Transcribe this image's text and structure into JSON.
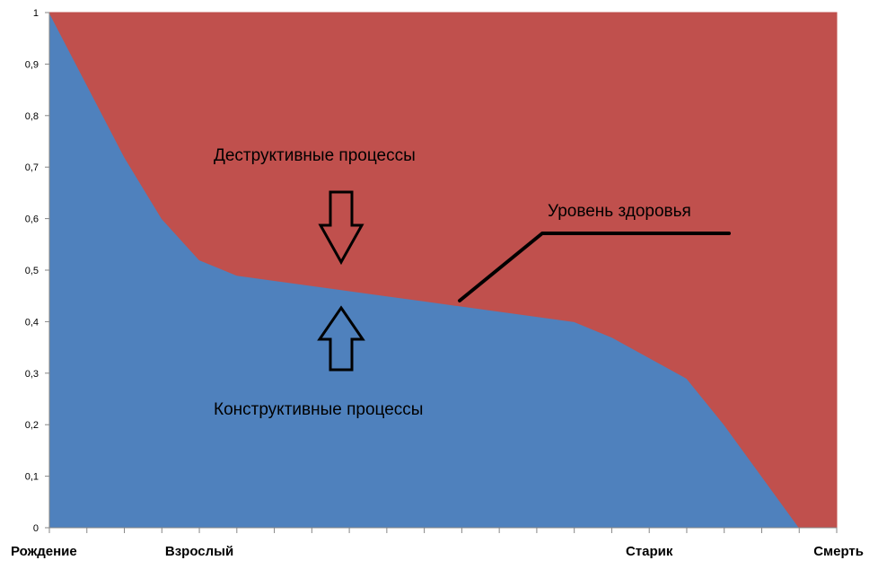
{
  "chart_data": {
    "type": "area",
    "stacked": true,
    "x": [
      0,
      1,
      2,
      3,
      4,
      5,
      6,
      7,
      8,
      9,
      10,
      11,
      12,
      13,
      14,
      15,
      16,
      17,
      18,
      19,
      20,
      21
    ],
    "series": [
      {
        "values": [
          1.0,
          0.86,
          0.72,
          0.6,
          0.52,
          0.49,
          0.48,
          0.47,
          0.46,
          0.45,
          0.44,
          0.43,
          0.42,
          0.41,
          0.4,
          0.37,
          0.33,
          0.29,
          0.2,
          0.1,
          0.0,
          0.0
        ],
        "color": "#4f81bd"
      },
      {
        "values": [
          0.0,
          0.14,
          0.28,
          0.4,
          0.48,
          0.51,
          0.52,
          0.53,
          0.54,
          0.55,
          0.56,
          0.57,
          0.58,
          0.59,
          0.6,
          0.63,
          0.67,
          0.71,
          0.8,
          0.9,
          1.0,
          1.0
        ],
        "color": "#c0504d"
      }
    ],
    "ylim": [
      0,
      1
    ],
    "yticks": [
      "0",
      "0,1",
      "0,2",
      "0,3",
      "0,4",
      "0,5",
      "0,6",
      "0,7",
      "0,8",
      "0,9",
      "1"
    ],
    "xtick_labels": [
      {
        "x": 0,
        "label": "Рождение"
      },
      {
        "x": 4,
        "label": "Взрослый"
      },
      {
        "x": 16,
        "label": "Старик"
      },
      {
        "x": 21,
        "label": "Смерть"
      }
    ],
    "grid": false,
    "legend": "none",
    "annotations": {
      "destructive": "Деструктивные процессы",
      "constructive": "Конструктивные процессы",
      "health_level": "Уровень здоровья"
    }
  }
}
